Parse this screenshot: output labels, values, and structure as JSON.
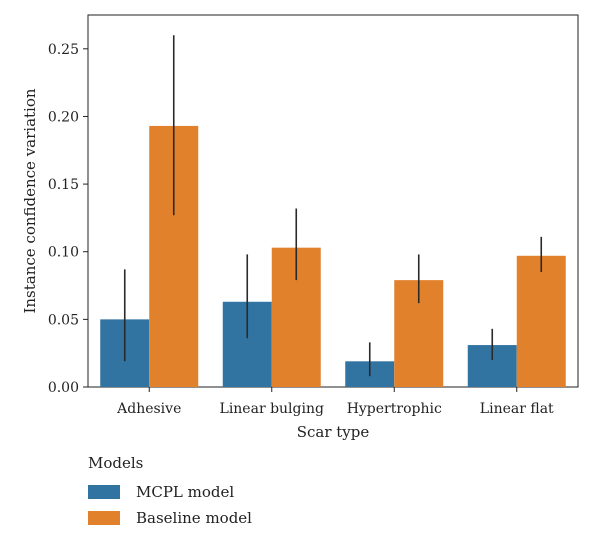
{
  "chart_data": {
    "type": "bar",
    "xlabel": "Scar type",
    "ylabel": "Instance confidence variation",
    "categories": [
      "Adhesive",
      "Linear bulging",
      "Hypertrophic",
      "Linear flat"
    ],
    "ylim": [
      0,
      0.275
    ],
    "yticks": [
      0.0,
      0.05,
      0.1,
      0.15,
      0.2,
      0.25
    ],
    "ytick_labels": [
      "0.00",
      "0.05",
      "0.10",
      "0.15",
      "0.20",
      "0.25"
    ],
    "grid": false,
    "legend": {
      "title": "Models",
      "placement": "below"
    },
    "series": [
      {
        "name": "MCPL model",
        "color": "#3274a1",
        "values": [
          0.05,
          0.063,
          0.019,
          0.031
        ],
        "err_low": [
          0.019,
          0.036,
          0.008,
          0.02
        ],
        "err_high": [
          0.087,
          0.098,
          0.033,
          0.043
        ]
      },
      {
        "name": "Baseline model",
        "color": "#e1812c",
        "values": [
          0.193,
          0.103,
          0.079,
          0.097
        ],
        "err_low": [
          0.127,
          0.079,
          0.062,
          0.085
        ],
        "err_high": [
          0.26,
          0.132,
          0.098,
          0.111
        ]
      }
    ]
  }
}
